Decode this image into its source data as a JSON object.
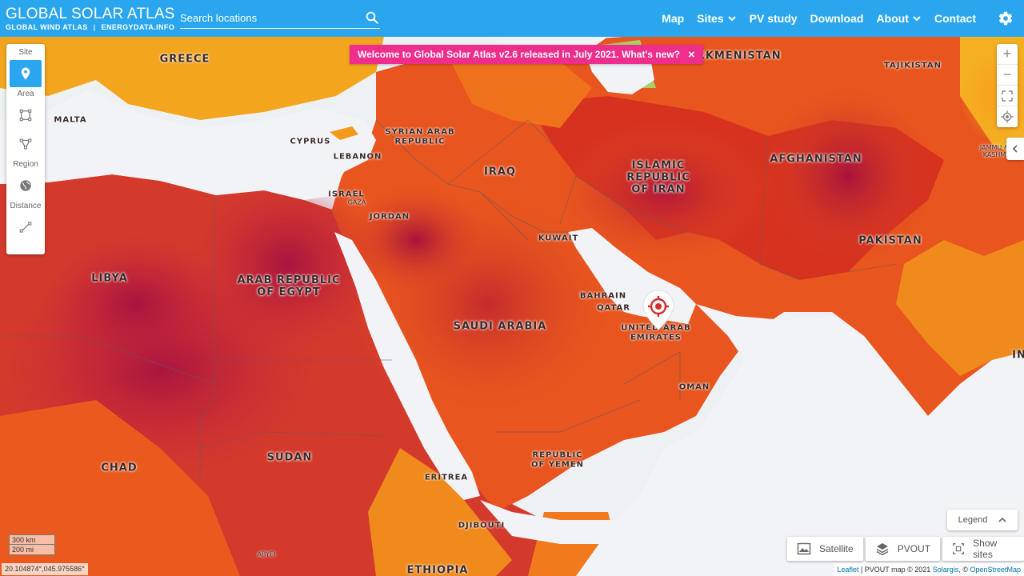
{
  "header": {
    "title": "GLOBAL SOLAR ATLAS",
    "sub_link_1": "GLOBAL WIND ATLAS",
    "sub_sep": "|",
    "sub_link_2": "ENERGYDATA.INFO",
    "search_placeholder": "Search locations",
    "nav": {
      "map": "Map",
      "sites": "Sites",
      "pv_study": "PV study",
      "download": "Download",
      "about": "About",
      "contact": "Contact"
    },
    "icons": {
      "search": "search-icon",
      "settings": "gear-icon",
      "dropdown": "chevron-down-icon"
    }
  },
  "banner": {
    "text": "Welcome to Global Solar Atlas v2.6 released in July 2021. What's new?",
    "close": "×"
  },
  "tools": {
    "site_label": "Site",
    "area_label": "Area",
    "region_label": "Region",
    "distance_label": "Distance",
    "active": "site"
  },
  "map_labels": {
    "greece": "GREECE",
    "malta": "MALTA",
    "cyprus": "CYPRUS",
    "lebanon": "LEBANON",
    "syria": "SYRIAN ARAB\nREPUBLIC",
    "israel": "ISRAEL",
    "gaza": "Gaza",
    "jordan": "JORDAN",
    "iraq": "IRAQ",
    "iran": "ISLAMIC\nREPUBLIC\nOF IRAN",
    "turkmenistan": "TURKMENISTAN",
    "tajikistan": "TAJIKISTAN",
    "afghanistan": "AFGHANISTAN",
    "jammu": "Jammu &\nKashm",
    "pakistan": "PAKISTAN",
    "kuwait": "KUWAIT",
    "bahrain": "BAHRAIN",
    "qatar": "QATAR",
    "uae": "UNITED ARAB\nEMIRATES",
    "saudi": "SAUDI ARABIA",
    "libya": "LIBYA",
    "egypt": "ARAB REPUBLIC\nOF EGYPT",
    "oman": "OMAN",
    "yemen": "REPUBLIC\nOF YEMEN",
    "eritrea": "ERITREA",
    "djibouti": "DJIBOUTI",
    "chad": "CHAD",
    "sudan": "SUDAN",
    "ethiopia": "ETHIOPIA",
    "abyei": "Abyei",
    "india_partial": "IN"
  },
  "controls": {
    "zoom_in": "+",
    "zoom_out": "−",
    "legend_label": "Legend",
    "satellite_label": "Satellite",
    "pvout_label": "PVOUT",
    "show_sites_label": "Show sites"
  },
  "scale": {
    "km": "300 km",
    "mi": "200 mi"
  },
  "coordinates": "20.104874°,045.975586°",
  "attribution": {
    "leaflet": "Leaflet",
    "text": " | PVOUT map © 2021 ",
    "solargis": "Solargis",
    "sep": ", © ",
    "osm": "OpenStreetMap"
  },
  "colors": {
    "header_bg": "#2aa6ef",
    "banner_bg": "#ee2d8c",
    "active_tool": "#2aa6ef",
    "marker": "#d32f2f"
  }
}
